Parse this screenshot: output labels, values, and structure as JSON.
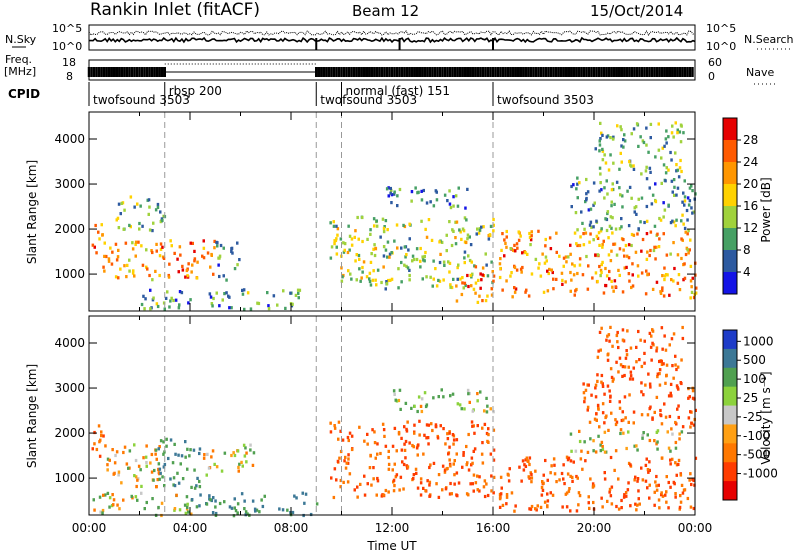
{
  "header": {
    "title": "Rankin Inlet (fitACF)",
    "beam": "Beam 12",
    "date": "15/Oct/2014"
  },
  "top_panels": {
    "nsky_label": "N.Sky",
    "nsky_ticks": [
      "10^5",
      "10^0"
    ],
    "nsearch_label": "N.Search",
    "nsearch_ticks": [
      "10^5",
      "10^0"
    ],
    "freq_label_1": "Freq.",
    "freq_label_2": "[MHz]",
    "freq_ticks": [
      "18",
      "8"
    ],
    "nave_label": "Nave",
    "nave_ticks": [
      "60",
      "0"
    ],
    "cpid_label": "CPID",
    "cpid_segments": [
      {
        "name": "twofsound",
        "id": "3503",
        "start": 0,
        "end": 3
      },
      {
        "name": "rbsp",
        "id": "200",
        "start": 3,
        "end": 9
      },
      {
        "name": "twofsound",
        "id": "3503",
        "start": 9,
        "end": 10
      },
      {
        "name": "normal (fast)",
        "id": "151",
        "start": 10,
        "end": 16
      },
      {
        "name": "twofsound",
        "id": "3503",
        "start": 16,
        "end": 24
      }
    ]
  },
  "power_colorbar": {
    "label": "Power [dB]",
    "ticks": [
      "28",
      "24",
      "20",
      "16",
      "12",
      "8",
      "4"
    ],
    "colors": [
      "#e60000",
      "#ff5a00",
      "#ff9600",
      "#ffd200",
      "#a0d23c",
      "#46a064",
      "#2d5aa0",
      "#1414e6"
    ]
  },
  "velocity_colorbar": {
    "label": "Velocity [m s⁻¹]",
    "ticks": [
      "1000",
      "500",
      "100",
      "25",
      "-25",
      "-100",
      "-500",
      "-1000"
    ],
    "colors": [
      "#1e3cc8",
      "#3c7896",
      "#50a050",
      "#8cd23c",
      "#c8c8c8",
      "#ffa014",
      "#ff7800",
      "#ff3c00",
      "#e60000"
    ]
  },
  "chart_data": [
    {
      "type": "heatmap",
      "title": "",
      "xlabel": "",
      "ylabel": "Slant Range [km]",
      "xlim": [
        0,
        24
      ],
      "ylim": [
        180,
        4600
      ],
      "yticks": [
        "1000",
        "2000",
        "3000",
        "4000"
      ],
      "quantity": "Power [dB]",
      "echo_regions": [
        {
          "t_start": 0.0,
          "t_end": 0.5,
          "r_start": 1400,
          "r_end": 2200,
          "level": 24
        },
        {
          "t_start": 0.5,
          "t_end": 2.7,
          "r_start": 900,
          "r_end": 1800,
          "level": 24
        },
        {
          "t_start": 1.0,
          "t_end": 3.0,
          "r_start": 2000,
          "r_end": 2800,
          "level": 14
        },
        {
          "t_start": 2.7,
          "t_end": 5.0,
          "r_start": 900,
          "r_end": 1800,
          "level": 26
        },
        {
          "t_start": 5.0,
          "t_end": 6.0,
          "r_start": 900,
          "r_end": 1800,
          "level": 10
        },
        {
          "t_start": 2.0,
          "t_end": 8.5,
          "r_start": 250,
          "r_end": 700,
          "level": 12
        },
        {
          "t_start": 9.5,
          "t_end": 16.0,
          "r_start": 700,
          "r_end": 2300,
          "level": 16
        },
        {
          "t_start": 11.5,
          "t_end": 15.0,
          "r_start": 2500,
          "r_end": 3000,
          "level": 10
        },
        {
          "t_start": 14.5,
          "t_end": 16.0,
          "r_start": 400,
          "r_end": 1200,
          "level": 26
        },
        {
          "t_start": 16.2,
          "t_end": 24.0,
          "r_start": 500,
          "r_end": 2000,
          "level": 24
        },
        {
          "t_start": 19.0,
          "t_end": 24.0,
          "r_start": 2000,
          "r_end": 3200,
          "level": 12
        },
        {
          "t_start": 20.0,
          "t_end": 23.5,
          "r_start": 3200,
          "r_end": 4400,
          "level": 14
        }
      ]
    },
    {
      "type": "heatmap",
      "title": "",
      "xlabel": "Time UT",
      "ylabel": "Slant Range [km]",
      "xlim": [
        0,
        24
      ],
      "ylim": [
        180,
        4600
      ],
      "xticks": [
        "00:00",
        "04:00",
        "08:00",
        "12:00",
        "16:00",
        "20:00",
        "00:00"
      ],
      "yticks": [
        "1000",
        "2000",
        "3000",
        "4000"
      ],
      "quantity": "Velocity [m s⁻¹]",
      "echo_regions": [
        {
          "t_start": 0.0,
          "t_end": 0.6,
          "r_start": 1500,
          "r_end": 2300,
          "level": -500
        },
        {
          "t_start": 0.6,
          "t_end": 2.8,
          "r_start": 800,
          "r_end": 1800,
          "level": -100
        },
        {
          "t_start": 2.5,
          "t_end": 4.5,
          "r_start": 800,
          "r_end": 1900,
          "level": 500
        },
        {
          "t_start": 4.5,
          "t_end": 6.5,
          "r_start": 1100,
          "r_end": 1800,
          "level": 0
        },
        {
          "t_start": 0.0,
          "t_end": 4.0,
          "r_start": 200,
          "r_end": 700,
          "level": 100
        },
        {
          "t_start": 4.0,
          "t_end": 9.0,
          "r_start": 200,
          "r_end": 700,
          "level": 500
        },
        {
          "t_start": 9.5,
          "t_end": 16.0,
          "r_start": 600,
          "r_end": 2300,
          "level": -500
        },
        {
          "t_start": 12.0,
          "t_end": 16.0,
          "r_start": 2500,
          "r_end": 3000,
          "level": 100
        },
        {
          "t_start": 16.2,
          "t_end": 24.0,
          "r_start": 300,
          "r_end": 1500,
          "level": -500
        },
        {
          "t_start": 19.0,
          "t_end": 23.5,
          "r_start": 1600,
          "r_end": 2100,
          "level": 0
        },
        {
          "t_start": 19.5,
          "t_end": 24.0,
          "r_start": 2100,
          "r_end": 3200,
          "level": -500
        },
        {
          "t_start": 20.0,
          "t_end": 23.5,
          "r_start": 3200,
          "r_end": 4400,
          "level": -500
        }
      ]
    }
  ]
}
